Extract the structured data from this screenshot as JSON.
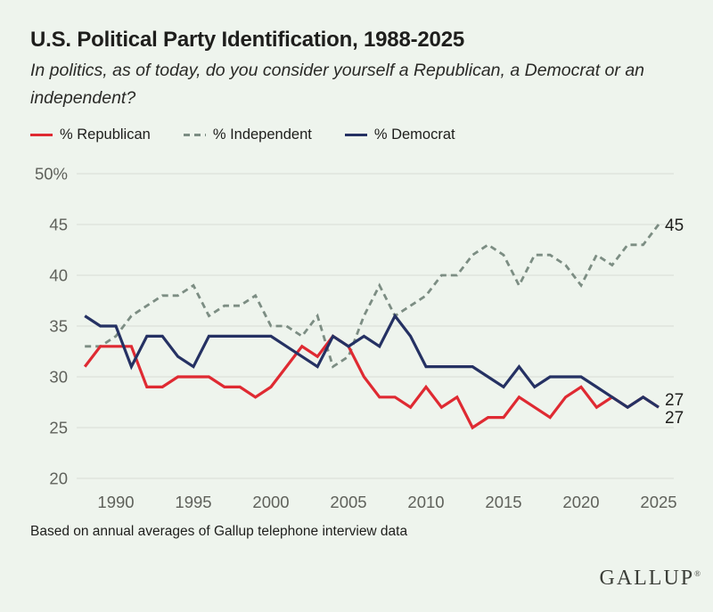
{
  "header": {
    "title": "U.S. Political Party Identification, 1988-2025",
    "subtitle": "In politics, as of today, do you consider yourself a Republican, a Democrat or an independent?"
  },
  "footnote": "Based on annual averages of Gallup telephone interview data",
  "logo": {
    "text": "GALLUP",
    "registered_mark": "®"
  },
  "colors": {
    "background": "#eef4ed",
    "gridline": "#d8dcd5",
    "republican_red": "#df2a32",
    "independent_gray": "#7c8d83",
    "democrat_navy": "#253163",
    "tick_text": "#5f615b",
    "end_label_text": "#1f1f1d"
  },
  "chart_data": {
    "type": "line",
    "title": "U.S. Political Party Identification, 1988-2025",
    "xlabel": "",
    "ylabel": "%",
    "grid": "horizontal",
    "legend_position": "top",
    "ylim": [
      20,
      50
    ],
    "yticks": [
      20,
      25,
      30,
      35,
      40,
      45,
      50
    ],
    "ytick_labels": [
      "20",
      "25",
      "30",
      "35",
      "40",
      "45",
      "50%"
    ],
    "xticks": [
      1990,
      1995,
      2000,
      2005,
      2010,
      2015,
      2020,
      2025
    ],
    "x": [
      1988,
      1989,
      1990,
      1991,
      1992,
      1993,
      1994,
      1995,
      1996,
      1997,
      1998,
      1999,
      2000,
      2001,
      2002,
      2003,
      2004,
      2005,
      2006,
      2007,
      2008,
      2009,
      2010,
      2011,
      2012,
      2013,
      2014,
      2015,
      2016,
      2017,
      2018,
      2019,
      2020,
      2021,
      2022,
      2023,
      2024,
      2025
    ],
    "series": [
      {
        "name": "% Republican",
        "color": "#df2a32",
        "style": "solid",
        "values": [
          31,
          33,
          33,
          33,
          29,
          29,
          30,
          30,
          30,
          29,
          29,
          28,
          29,
          31,
          33,
          32,
          34,
          33,
          30,
          28,
          28,
          27,
          29,
          27,
          28,
          25,
          26,
          26,
          28,
          27,
          26,
          28,
          29,
          27,
          28,
          27,
          28,
          27
        ]
      },
      {
        "name": "% Independent",
        "color": "#7c8d83",
        "style": "dashed",
        "values": [
          33,
          33,
          34,
          36,
          37,
          38,
          38,
          39,
          36,
          37,
          37,
          38,
          35,
          35,
          34,
          36,
          31,
          32,
          36,
          39,
          36,
          37,
          38,
          40,
          40,
          42,
          43,
          42,
          39,
          42,
          42,
          41,
          39,
          42,
          41,
          43,
          43,
          45
        ]
      },
      {
        "name": "% Democrat",
        "color": "#253163",
        "style": "solid",
        "values": [
          36,
          35,
          35,
          31,
          34,
          34,
          32,
          31,
          34,
          34,
          34,
          34,
          34,
          33,
          32,
          31,
          34,
          33,
          34,
          33,
          36,
          34,
          31,
          31,
          31,
          31,
          30,
          29,
          31,
          29,
          30,
          30,
          30,
          29,
          28,
          27,
          28,
          27
        ]
      }
    ],
    "end_labels": [
      {
        "series": "% Independent",
        "text": "45"
      },
      {
        "series": "% Democrat",
        "text": "27"
      },
      {
        "series": "% Republican",
        "text": "27"
      }
    ]
  }
}
